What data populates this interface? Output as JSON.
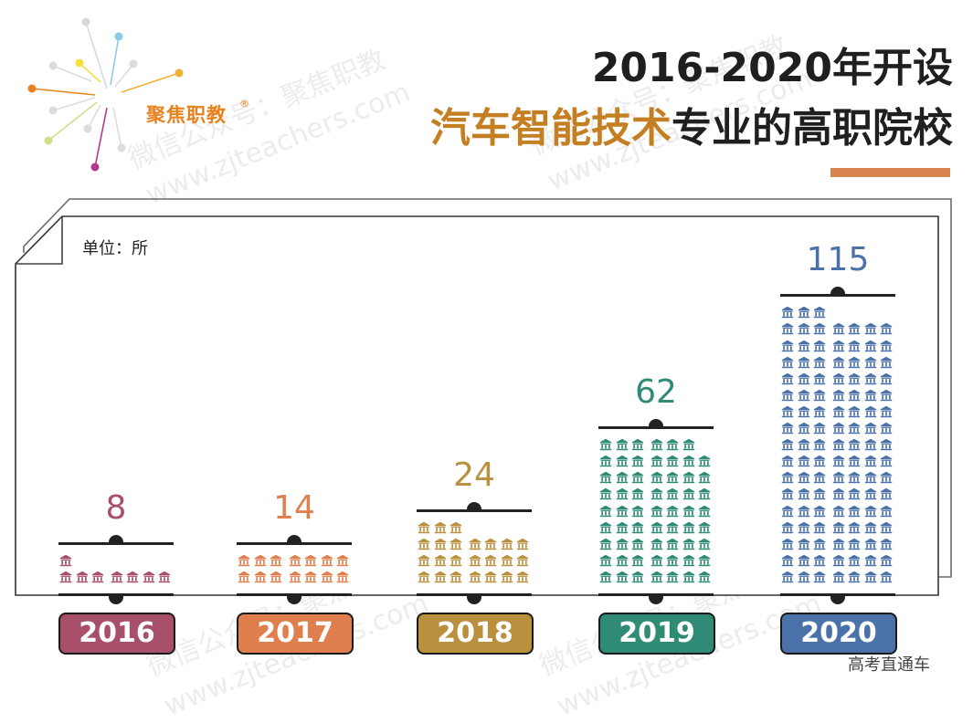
{
  "logo": {
    "text": "聚焦职教",
    "registered": "®",
    "ray_colors": [
      "#dcdcdc",
      "#7cc4e6",
      "#f5e13a",
      "#dcdcdc",
      "#f0b13a",
      "#e8821e",
      "#dcdcdc",
      "#c9dc7a",
      "#dcdcdc",
      "#b03a8c",
      "#dcdcdc",
      "#dcdcdc"
    ]
  },
  "header": {
    "title_line1": "2016-2020年开设",
    "title_line2_accent": "汽车智能技术",
    "title_line2_rest": "专业的高职院校",
    "underline_color": "#d9834f"
  },
  "unit_label": "单位：所",
  "watermark": {
    "line1": "微信公众号：聚焦职教",
    "line2": "www.zjteachers.com"
  },
  "footer": {
    "source": "高考直通车"
  },
  "icon": "institution-building-icon",
  "chart_data": {
    "type": "bar",
    "subtype": "pictogram",
    "title": "2016-2020年开设汽车智能技术专业的高职院校",
    "xlabel": "",
    "ylabel": "单位：所",
    "categories": [
      "2016",
      "2017",
      "2018",
      "2019",
      "2020"
    ],
    "values": [
      8,
      14,
      24,
      62,
      115
    ],
    "colors": [
      "#a8506a",
      "#e07f4e",
      "#b9903e",
      "#2f8a76",
      "#4a72a8"
    ],
    "icons_per_row": 7,
    "grid": false,
    "legend": "none"
  },
  "columns": [
    {
      "year": "2016",
      "value": "8",
      "color": "#a8506a",
      "count": 8
    },
    {
      "year": "2017",
      "value": "14",
      "color": "#e07f4e",
      "count": 14
    },
    {
      "year": "2018",
      "value": "24",
      "color": "#b9903e",
      "count": 24
    },
    {
      "year": "2019",
      "value": "62",
      "color": "#2f8a76",
      "count": 62
    },
    {
      "year": "2020",
      "value": "115",
      "color": "#4a72a8",
      "count": 115
    }
  ]
}
